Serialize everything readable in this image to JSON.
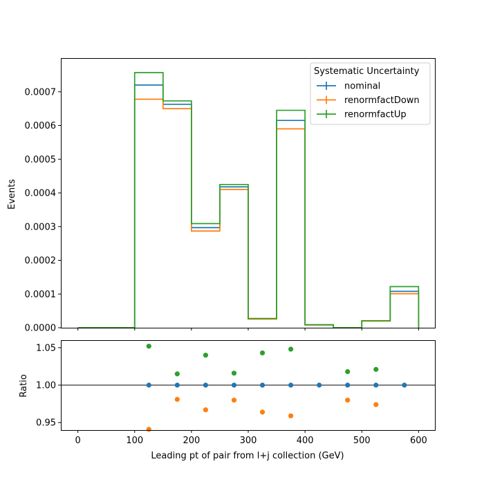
{
  "chart_data": [
    {
      "type": "step",
      "ylabel": "Events",
      "xlabel": "",
      "xlim": [
        -30,
        630
      ],
      "ylim": [
        0,
        0.0008
      ],
      "yticks": [
        "0.0000",
        "0.0001",
        "0.0002",
        "0.0003",
        "0.0004",
        "0.0005",
        "0.0006",
        "0.0007"
      ],
      "bin_edges": [
        0,
        50,
        100,
        150,
        200,
        250,
        300,
        350,
        400,
        450,
        500,
        550,
        600
      ],
      "legend": {
        "title": "Systematic Uncertainty",
        "placement": "top-right"
      },
      "series": [
        {
          "name": "nominal",
          "color": "#1f77b4",
          "values": [
            0,
            0,
            0.00072,
            0.000663,
            0.000297,
            0.000418,
            2.65e-05,
            0.000615,
            8.5e-06,
            0,
            2.05e-05,
            0.000108
          ]
        },
        {
          "name": "renormfactDown",
          "color": "#ff7f0e",
          "values": [
            0,
            0,
            0.000678,
            0.00065,
            0.000287,
            0.00041,
            2.55e-05,
            0.00059,
            8.1e-06,
            0,
            1.96e-05,
            0.000101
          ]
        },
        {
          "name": "renormfactUp",
          "color": "#2ca02c",
          "values": [
            0,
            0,
            0.000757,
            0.000673,
            0.000309,
            0.000425,
            2.76e-05,
            0.000645,
            8.9e-06,
            0,
            2.09e-05,
            0.000122
          ]
        }
      ]
    },
    {
      "type": "scatter",
      "ylabel": "Ratio",
      "xlabel": "Leading pt of pair from l+j collection (GeV)",
      "xlim": [
        -30,
        630
      ],
      "ylim": [
        0.94,
        1.06
      ],
      "yticks": [
        "0.95",
        "1.00",
        "1.05"
      ],
      "xticks": [
        "0",
        "100",
        "200",
        "300",
        "400",
        "500",
        "600"
      ],
      "reference_line": 1.0,
      "series": [
        {
          "name": "nominal",
          "color": "#1f77b4",
          "x": [
            125,
            175,
            225,
            275,
            325,
            375,
            425,
            475,
            525,
            575
          ],
          "y": [
            1.0,
            1.0,
            1.0,
            1.0,
            1.0,
            1.0,
            1.0,
            1.0,
            1.0,
            1.0
          ]
        },
        {
          "name": "renormfactDown",
          "color": "#ff7f0e",
          "x": [
            125,
            175,
            225,
            275,
            325,
            375,
            475,
            525
          ],
          "y": [
            0.941,
            0.981,
            0.967,
            0.98,
            0.964,
            0.959,
            0.98,
            0.974
          ]
        },
        {
          "name": "renormfactUp",
          "color": "#2ca02c",
          "x": [
            125,
            175,
            225,
            275,
            325,
            375,
            475,
            525
          ],
          "y": [
            1.052,
            1.015,
            1.04,
            1.016,
            1.043,
            1.048,
            1.018,
            1.021
          ]
        }
      ]
    }
  ]
}
